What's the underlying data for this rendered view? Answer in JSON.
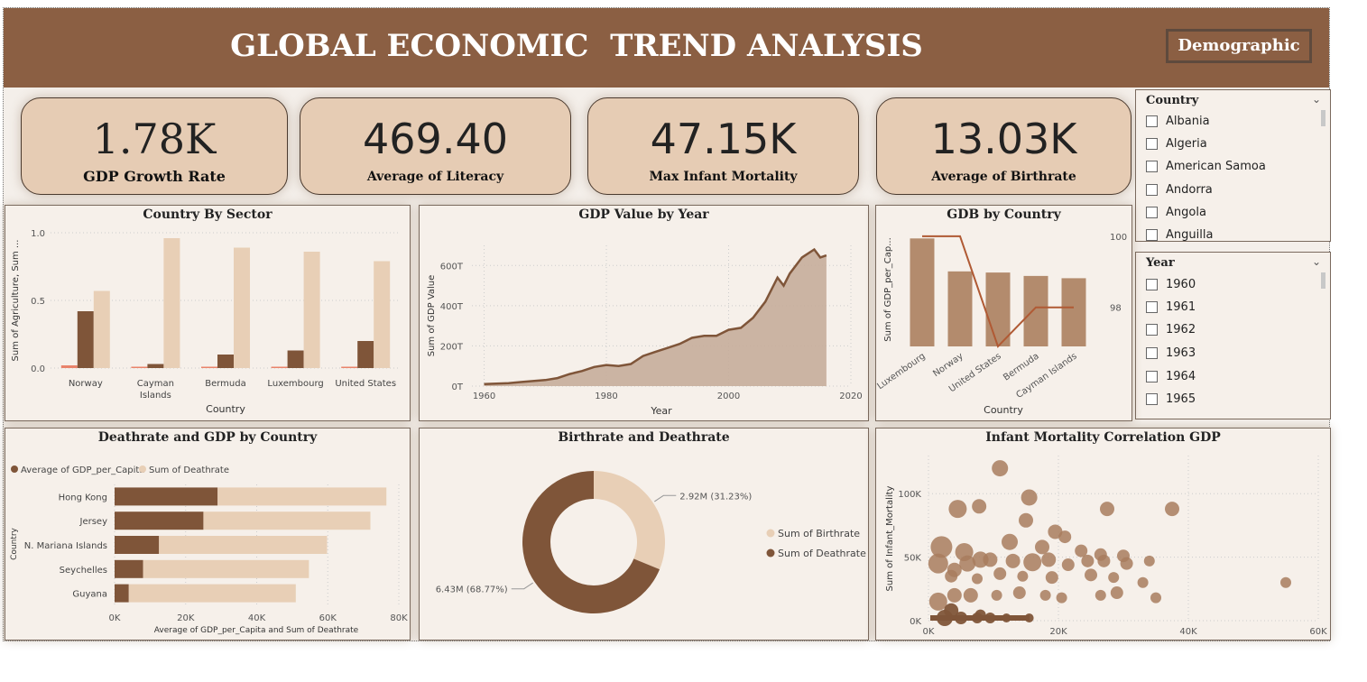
{
  "header": {
    "title": "GLOBAL ECONOMIC  TREND ANALYSIS",
    "nav_button": "Demographic"
  },
  "kpis": [
    {
      "value": "1.78K",
      "label": "GDP Growth Rate"
    },
    {
      "value": "469.40",
      "label": "Average of Literacy"
    },
    {
      "value": "47.15K",
      "label": "Max Infant Mortality"
    },
    {
      "value": "13.03K",
      "label": "Average of Birthrate"
    }
  ],
  "slicers": {
    "country": {
      "header": "Country",
      "options": [
        "Albania",
        "Algeria",
        "American Samoa",
        "Andorra",
        "Angola",
        "Anguilla"
      ]
    },
    "year": {
      "header": "Year",
      "options": [
        "1960",
        "1961",
        "1962",
        "1963",
        "1964",
        "1965"
      ]
    }
  },
  "colors": {
    "header": "#8b5f43",
    "dark": "#7f5539",
    "medium": "#b38b6d",
    "light": "#e8cfb6",
    "red": "#e9836b",
    "line": "#b05a34"
  },
  "chart_data": [
    {
      "id": "sector",
      "type": "bar",
      "title": "Country By Sector",
      "xlabel": "Country",
      "ylabel": "Sum of Agriculture, Sum ...",
      "categories": [
        "Norway",
        "Cayman Islands",
        "Bermuda",
        "Luxembourg",
        "United States"
      ],
      "series": [
        {
          "values": [
            0.02,
            0.01,
            0.01,
            0.01,
            0.01
          ]
        },
        {
          "values": [
            0.42,
            0.03,
            0.1,
            0.13,
            0.2
          ]
        },
        {
          "values": [
            0.57,
            0.96,
            0.89,
            0.86,
            0.79
          ]
        }
      ],
      "ylim": [
        0,
        1.0
      ],
      "yticks": [
        "0.0",
        "0.5",
        "1.0"
      ]
    },
    {
      "id": "gdp_year",
      "type": "area",
      "title": "GDP Value by Year",
      "xlabel": "Year",
      "ylabel": "Sum of GDP Value",
      "x": [
        1960,
        1962,
        1964,
        1966,
        1968,
        1970,
        1972,
        1974,
        1976,
        1978,
        1980,
        1982,
        1984,
        1986,
        1988,
        1990,
        1992,
        1994,
        1996,
        1998,
        2000,
        2002,
        2004,
        2006,
        2008,
        2009,
        2010,
        2012,
        2014,
        2015,
        2016
      ],
      "y": [
        10,
        12,
        15,
        20,
        25,
        30,
        40,
        60,
        75,
        95,
        105,
        100,
        110,
        150,
        170,
        190,
        210,
        240,
        250,
        250,
        280,
        290,
        340,
        420,
        540,
        500,
        560,
        640,
        680,
        640,
        650
      ],
      "xlim": [
        1958,
        2020
      ],
      "xticks": [
        "1960",
        "1980",
        "2000",
        "2020"
      ],
      "ylim": [
        0,
        700
      ],
      "yticks": [
        "0T",
        "200T",
        "400T",
        "600T"
      ]
    },
    {
      "id": "gdb_country",
      "type": "bar",
      "title": "GDB by Country",
      "xlabel": "Country",
      "ylabel": "Sum of GDP_per_Cap...",
      "categories": [
        "Luxembourg",
        "Norway",
        "United States",
        "Bermuda",
        "Cayman Islands"
      ],
      "bars": [
        95,
        66,
        65,
        62,
        60
      ],
      "bar_max": 100,
      "line": [
        100,
        100,
        96.9,
        98,
        98
      ],
      "line_ylim": [
        96.9,
        100.1
      ],
      "line_ticks": [
        "100",
        "98"
      ]
    },
    {
      "id": "death_gdp",
      "type": "bar",
      "title": "Deathrate and GDP by Country",
      "xlabel": "Average of GDP_per_Capita and Sum of Deathrate",
      "ylabel": "Country",
      "categories": [
        "Hong Kong",
        "Jersey",
        "N. Mariana Islands",
        "Seychelles",
        "Guyana"
      ],
      "series": [
        {
          "name": "Average of GDP_per_Capita",
          "values": [
            29000,
            25000,
            12500,
            8000,
            4000
          ]
        },
        {
          "name": "Sum of Deathrate",
          "values": [
            47500,
            47000,
            47300,
            46700,
            47000
          ]
        }
      ],
      "xlim": [
        0,
        80000
      ],
      "xticks": [
        "0K",
        "20K",
        "40K",
        "60K",
        "80K"
      ]
    },
    {
      "id": "birth_death",
      "type": "pie",
      "title": "Birthrate and Deathrate",
      "slices": [
        {
          "name": "Sum of Birthrate",
          "value": 31.23,
          "label": "2.92M (31.23%)"
        },
        {
          "name": "Sum of Deathrate",
          "value": 68.77,
          "label": "6.43M (68.77%)"
        }
      ]
    },
    {
      "id": "infant_corr",
      "type": "scatter",
      "title": "Infant Mortality Correlation GDP",
      "ylabel": "Sum of Infant_Mortality",
      "xlim": [
        0,
        60000
      ],
      "ylim": [
        0,
        130000
      ],
      "xticks": [
        "0K",
        "20K",
        "40K",
        "60K"
      ],
      "yticks": [
        "0K",
        "50K",
        "100K"
      ],
      "points": [
        [
          11000,
          120000,
          9
        ],
        [
          4500,
          88000,
          10
        ],
        [
          7800,
          90000,
          8
        ],
        [
          15500,
          97000,
          9
        ],
        [
          27500,
          88000,
          8
        ],
        [
          37500,
          88000,
          8
        ],
        [
          15000,
          79000,
          8
        ],
        [
          19500,
          70000,
          8
        ],
        [
          21000,
          66000,
          7
        ],
        [
          2000,
          58000,
          12
        ],
        [
          5500,
          54000,
          10
        ],
        [
          8000,
          48000,
          9
        ],
        [
          12500,
          62000,
          9
        ],
        [
          17500,
          58000,
          8
        ],
        [
          23500,
          55000,
          7
        ],
        [
          26500,
          52000,
          7
        ],
        [
          30000,
          51000,
          7
        ],
        [
          1500,
          45000,
          11
        ],
        [
          4000,
          40000,
          8
        ],
        [
          6000,
          45000,
          9
        ],
        [
          9500,
          48000,
          8
        ],
        [
          13000,
          47000,
          8
        ],
        [
          16000,
          46000,
          10
        ],
        [
          18500,
          48000,
          8
        ],
        [
          21500,
          44000,
          7
        ],
        [
          24500,
          47000,
          7
        ],
        [
          27000,
          47000,
          7
        ],
        [
          30500,
          45000,
          7
        ],
        [
          34000,
          47000,
          6
        ],
        [
          3500,
          35000,
          7
        ],
        [
          7500,
          33000,
          6
        ],
        [
          11000,
          37000,
          7
        ],
        [
          14500,
          35000,
          6
        ],
        [
          19000,
          34000,
          7
        ],
        [
          25000,
          36000,
          7
        ],
        [
          28500,
          34000,
          6
        ],
        [
          33000,
          30000,
          6
        ],
        [
          1500,
          15000,
          10
        ],
        [
          4000,
          20000,
          8
        ],
        [
          6500,
          20000,
          8
        ],
        [
          10500,
          20000,
          6
        ],
        [
          14000,
          22000,
          7
        ],
        [
          18000,
          20000,
          6
        ],
        [
          20500,
          18000,
          6
        ],
        [
          26500,
          20000,
          6
        ],
        [
          29000,
          22000,
          7
        ],
        [
          35000,
          18000,
          6
        ],
        [
          55000,
          30000,
          6
        ],
        [
          2500,
          2000,
          9
        ],
        [
          5000,
          1500,
          7
        ],
        [
          7500,
          1000,
          6
        ],
        [
          9500,
          1500,
          6
        ],
        [
          12000,
          2000,
          5
        ],
        [
          15500,
          1500,
          5
        ],
        [
          3500,
          8000,
          8
        ],
        [
          8000,
          4500,
          6
        ]
      ]
    }
  ]
}
